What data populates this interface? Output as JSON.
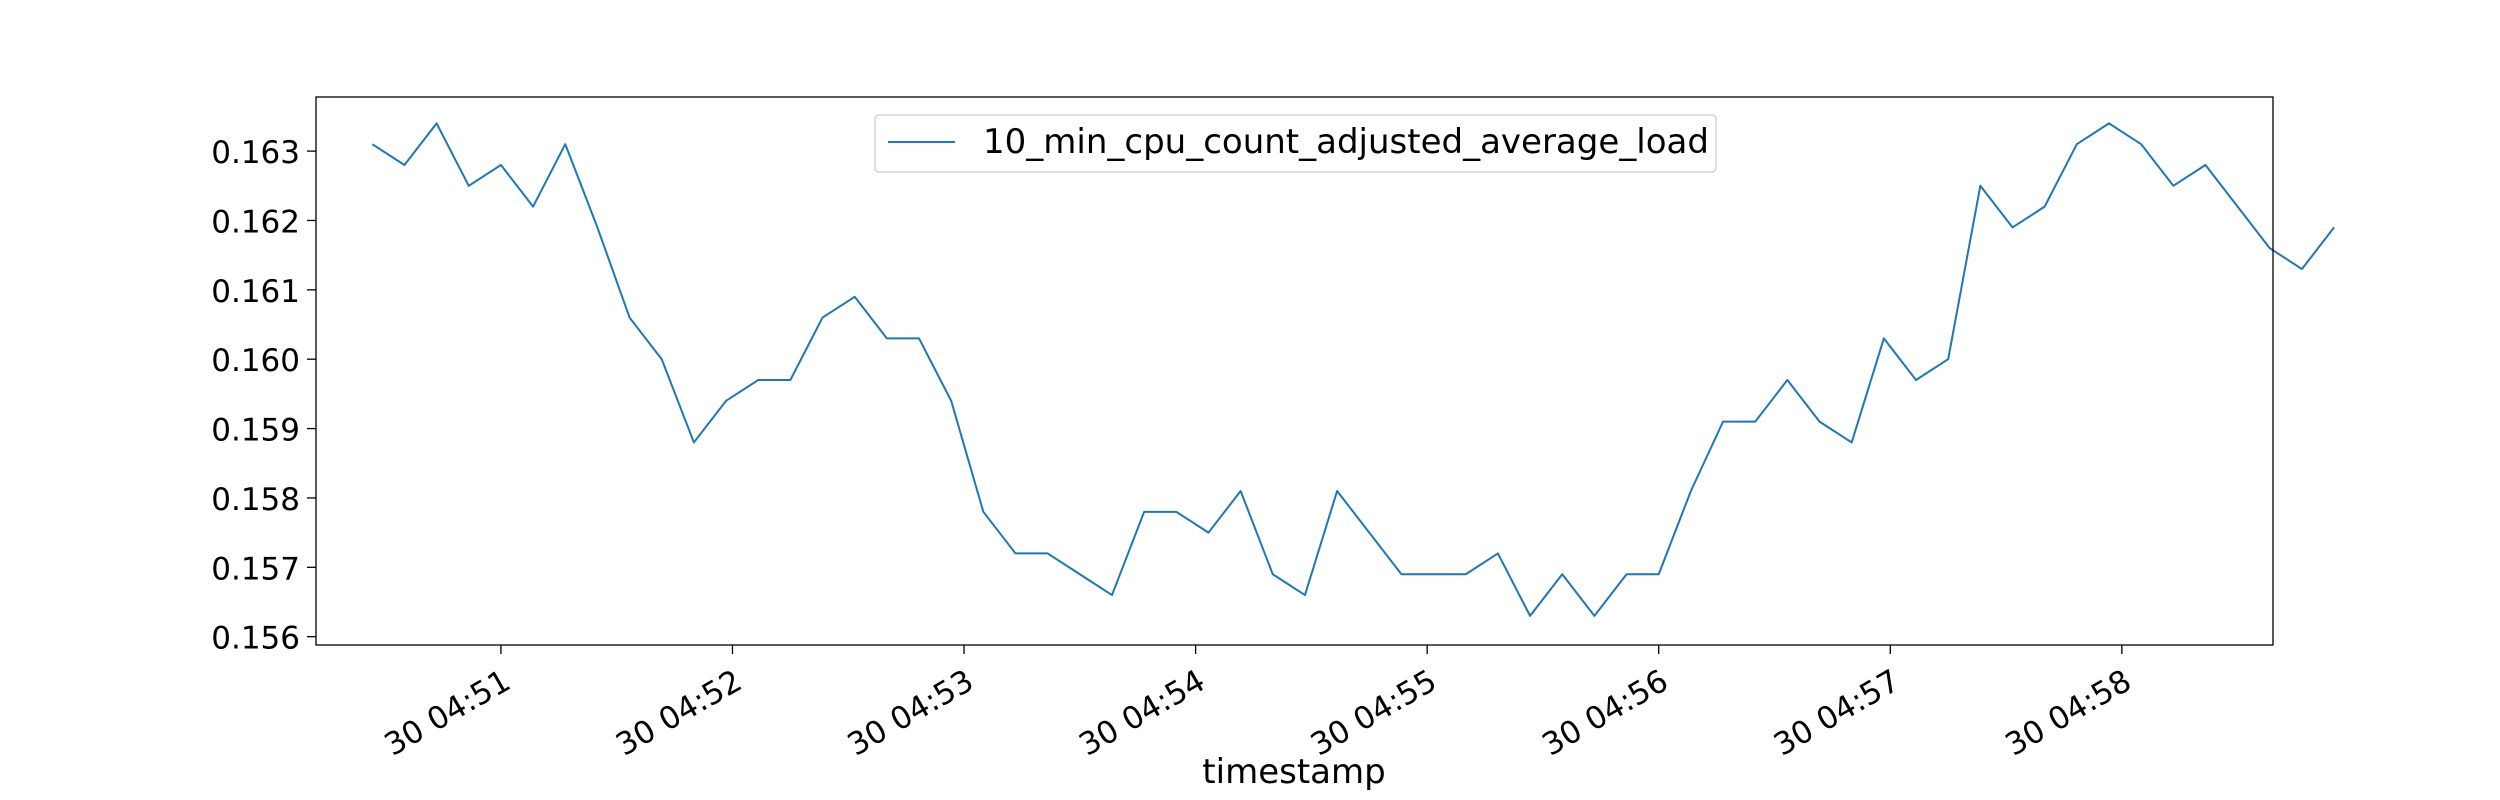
{
  "chart_data": {
    "type": "line",
    "title": "",
    "xlabel": "timestamp",
    "ylabel": "",
    "grid": false,
    "legend_position": "top-center",
    "ylim": [
      0.15588,
      0.16378
    ],
    "y_ticks": [
      "0.156",
      "0.157",
      "0.158",
      "0.159",
      "0.160",
      "0.161",
      "0.162",
      "0.163"
    ],
    "x_ticks": [
      "30 04:51",
      "30 04:52",
      "30 04:53",
      "30 04:54",
      "30 04:55",
      "30 04:56",
      "30 04:57",
      "30 04:58"
    ],
    "x_tick_positions": [
      4,
      11.2,
      18.4,
      25.6,
      32.8,
      40,
      47.2,
      54.4
    ],
    "x_range": [
      -1.75,
      59.1
    ],
    "series": [
      {
        "name": "10_min_cpu_count_adjusted_average_load",
        "color": "#1f77b4",
        "values": [
          0.1631,
          0.1628,
          0.1634,
          0.1625,
          0.1628,
          0.1622,
          0.1631,
          0.1619,
          0.1606,
          0.16,
          0.1588,
          0.1594,
          0.1597,
          0.1597,
          0.1606,
          0.1609,
          0.1603,
          0.1603,
          0.1594,
          0.1578,
          0.1572,
          0.1572,
          0.1569,
          0.1566,
          0.1578,
          0.1578,
          0.1575,
          0.1581,
          0.1569,
          0.1566,
          0.1581,
          0.1575,
          0.1569,
          0.1569,
          0.1569,
          0.1572,
          0.1563,
          0.1569,
          0.1563,
          0.1569,
          0.1569,
          0.1581,
          0.1591,
          0.1591,
          0.1597,
          0.1591,
          0.1588,
          0.1603,
          0.1597,
          0.16,
          0.1625,
          0.1619,
          0.1622,
          0.1631,
          0.1634,
          0.1631,
          0.1625,
          0.1628,
          0.1622,
          0.1616,
          0.1613,
          0.1619
        ]
      }
    ]
  }
}
